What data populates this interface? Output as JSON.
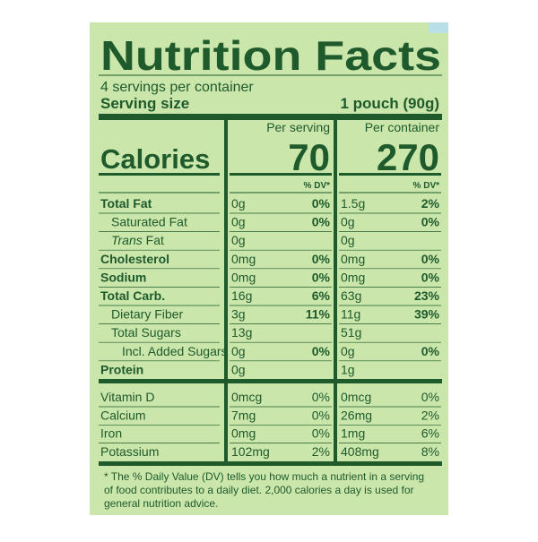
{
  "title": "Nutrition Facts",
  "servings": "4 servings per container",
  "serving_size_label": "Serving size",
  "serving_size_value": "1 pouch (90g)",
  "calories_label": "Calories",
  "columns": [
    {
      "header": "Per serving",
      "calories": "70",
      "dv_header": "% DV*"
    },
    {
      "header": "Per container",
      "calories": "270",
      "dv_header": "% DV*"
    }
  ],
  "rows": [
    {
      "name": "Total Fat",
      "bold": true,
      "cells": [
        "0g",
        "0%",
        "1.5g",
        "2%"
      ]
    },
    {
      "name": "Saturated Fat",
      "indent": 1,
      "cells": [
        "0g",
        "0%",
        "0g",
        "0%"
      ]
    },
    {
      "name_prefix": "Trans",
      "name": "Fat",
      "indent": 1,
      "cells": [
        "0g",
        null,
        "0g",
        null
      ]
    },
    {
      "name": "Cholesterol",
      "bold": true,
      "cells": [
        "0mg",
        "0%",
        "0mg",
        "0%"
      ]
    },
    {
      "name": "Sodium",
      "bold": true,
      "cells": [
        "0mg",
        "0%",
        "0mg",
        "0%"
      ]
    },
    {
      "name": "Total Carb.",
      "bold": true,
      "cells": [
        "16g",
        "6%",
        "63g",
        "23%"
      ]
    },
    {
      "name": "Dietary Fiber",
      "indent": 1,
      "cells": [
        "3g",
        "11%",
        "11g",
        "39%"
      ]
    },
    {
      "name": "Total Sugars",
      "indent": 1,
      "cells": [
        "13g",
        null,
        "51g",
        null
      ]
    },
    {
      "name": "Incl. Added Sugars",
      "indent": 2,
      "cells": [
        "0g",
        "0%",
        "0g",
        "0%"
      ]
    },
    {
      "name": "Protein",
      "bold": true,
      "cells": [
        "0g",
        null,
        "1g",
        null
      ]
    }
  ],
  "vitamins": [
    {
      "name": "Vitamin D",
      "cells": [
        "0mcg",
        "0%",
        "0mcg",
        "0%"
      ]
    },
    {
      "name": "Calcium",
      "cells": [
        "7mg",
        "0%",
        "26mg",
        "2%"
      ]
    },
    {
      "name": "Iron",
      "cells": [
        "0mg",
        "0%",
        "1mg",
        "6%"
      ]
    },
    {
      "name": "Potassium",
      "cells": [
        "102mg",
        "2%",
        "408mg",
        "8%"
      ]
    }
  ],
  "footnote": [
    "* The % Daily Value (DV) tells you how much a nutrient in a serving",
    "of food contributes to a daily diet. 2,000 calories a day is used for",
    "general nutrition advice."
  ]
}
